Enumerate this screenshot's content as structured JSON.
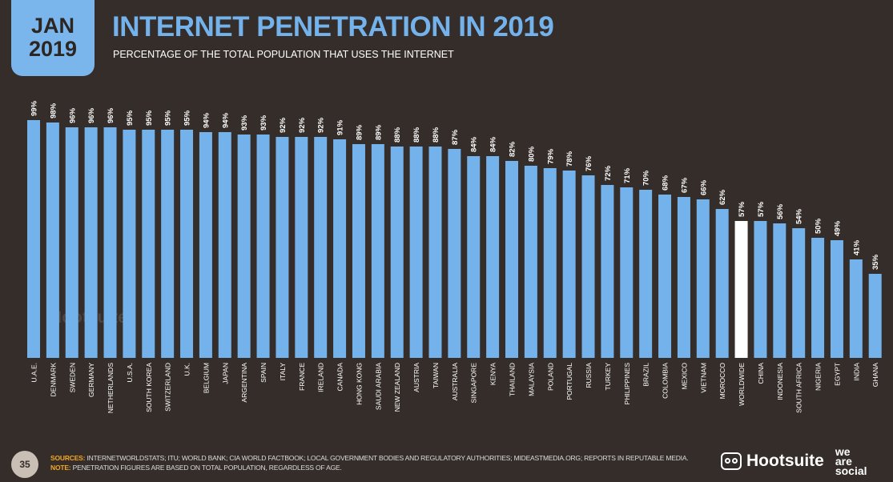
{
  "header": {
    "month": "JAN",
    "year": "2019",
    "title": "INTERNET PENETRATION IN 2019",
    "subtitle": "PERCENTAGE OF THE TOTAL POPULATION THAT USES THE INTERNET"
  },
  "footer": {
    "page_number": "35",
    "sources_label": "SOURCES:",
    "sources_text": "INTERNETWORLDSTATS; ITU; WORLD BANK; CIA WORLD FACTBOOK; LOCAL GOVERNMENT BODIES AND REGULATORY AUTHORITIES; MIDEASTMEDIA.ORG; REPORTS IN REPUTABLE MEDIA.",
    "note_label": "NOTE:",
    "note_text": "PENETRATION FIGURES ARE BASED ON TOTAL POPULATION, REGARDLESS OF AGE.",
    "brand_hootsuite": "Hootsuite",
    "brand_was": [
      "we",
      "are",
      "social"
    ]
  },
  "watermark": "Hootsuite",
  "colors": {
    "bar": "#74b2ec",
    "highlight": "#ffffff",
    "background": "#342d29",
    "accent": "#f5a623"
  },
  "chart_data": {
    "type": "bar",
    "title": "INTERNET PENETRATION IN 2019",
    "ylim": [
      0,
      100
    ],
    "grid": false,
    "value_format": "{v}%",
    "highlight_category": "WORLDWIDE",
    "categories": [
      "U.A.E.",
      "DENMARK",
      "SWEDEN",
      "GERMANY",
      "NETHERLANDS",
      "U.S.A.",
      "SOUTH KOREA",
      "SWITZERLAND",
      "U.K.",
      "BELGIUM",
      "JAPAN",
      "ARGENTINA",
      "SPAIN",
      "ITALY",
      "FRANCE",
      "IRELAND",
      "CANADA",
      "HONG KONG",
      "SAUDI ARABIA",
      "NEW ZEALAND",
      "AUSTRIA",
      "TAIWAN",
      "AUSTRALIA",
      "SINGAPORE",
      "KENYA",
      "THAILAND",
      "MALAYSIA",
      "POLAND",
      "PORTUGAL",
      "RUSSIA",
      "TURKEY",
      "PHILIPPINES",
      "BRAZIL",
      "COLOMBIA",
      "MEXICO",
      "VIETNAM",
      "MOROCCO",
      "WORLDWIDE",
      "CHINA",
      "INDONESIA",
      "SOUTH AFRICA",
      "NIGERIA",
      "EGYPT",
      "INDIA",
      "GHANA"
    ],
    "values": [
      99,
      98,
      96,
      96,
      96,
      95,
      95,
      95,
      95,
      94,
      94,
      93,
      93,
      92,
      92,
      92,
      91,
      89,
      89,
      88,
      88,
      88,
      87,
      84,
      84,
      82,
      80,
      79,
      78,
      76,
      72,
      71,
      70,
      68,
      67,
      66,
      62,
      57,
      57,
      56,
      54,
      50,
      49,
      41,
      35
    ]
  }
}
